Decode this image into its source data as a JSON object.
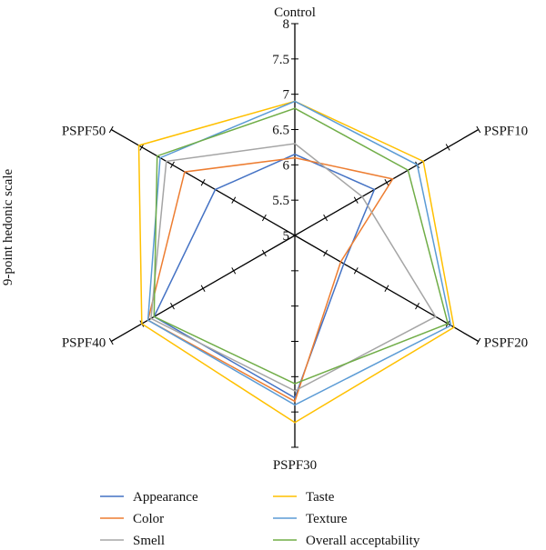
{
  "chart_data": {
    "type": "radar",
    "ylabel": "9-point hedonic scale",
    "axes": [
      "Control",
      "PSPF10",
      "PSPF20",
      "PSPF30",
      "PSPF40",
      "PSPF50"
    ],
    "range": [
      5,
      8
    ],
    "ticks": [
      5,
      5.5,
      6,
      6.5,
      7,
      7.5,
      8
    ],
    "tick_labels": [
      "5",
      "5.5",
      "6",
      "6.5",
      "7",
      "7.5",
      "8"
    ],
    "grid": false,
    "legend_position": "bottom",
    "series": [
      {
        "name": "Appearance",
        "color": "#4472C4",
        "values": [
          6.15,
          6.3,
          5.8,
          7.3,
          7.3,
          6.3
        ]
      },
      {
        "name": "Color",
        "color": "#ED7D31",
        "values": [
          6.1,
          6.6,
          5.75,
          7.35,
          7.4,
          6.8
        ]
      },
      {
        "name": "Smell",
        "color": "#A5A5A5",
        "values": [
          6.3,
          6.1,
          7.3,
          7.2,
          7.35,
          7.1
        ]
      },
      {
        "name": "Taste",
        "color": "#FFC000",
        "values": [
          6.9,
          7.1,
          7.6,
          7.65,
          7.5,
          7.55
        ]
      },
      {
        "name": "Texture",
        "color": "#5B9BD5",
        "values": [
          6.9,
          7.0,
          7.55,
          7.4,
          7.4,
          7.2
        ]
      },
      {
        "name": "Overall acceptability",
        "color": "#70AD47",
        "values": [
          6.8,
          6.85,
          7.5,
          7.1,
          7.3,
          7.25
        ]
      }
    ]
  }
}
